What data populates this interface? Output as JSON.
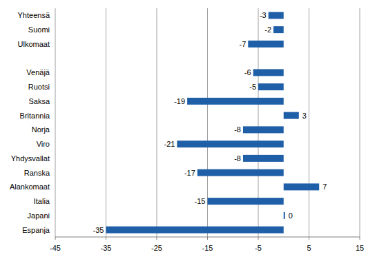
{
  "chart_data": {
    "type": "bar",
    "orientation": "horizontal",
    "categories": [
      "Yhteensä",
      "Suomi",
      "Ulkomaat",
      null,
      "Venäjä",
      "Ruotsi",
      "Saksa",
      "Britannia",
      "Norja",
      "Viro",
      "Yhdysvallat",
      "Ranska",
      "Alankomaat",
      "Italia",
      "Japani",
      "Espanja"
    ],
    "values": [
      -3,
      -2,
      -7,
      null,
      -6,
      -5,
      -19,
      3,
      -8,
      -21,
      -8,
      -17,
      7,
      -15,
      0,
      -35
    ],
    "color": "#1f5fa8",
    "xlim": [
      -45,
      15
    ],
    "xticks": [
      -45,
      -35,
      -25,
      -15,
      -5,
      5,
      15
    ],
    "grid": true,
    "data_labels": true
  }
}
